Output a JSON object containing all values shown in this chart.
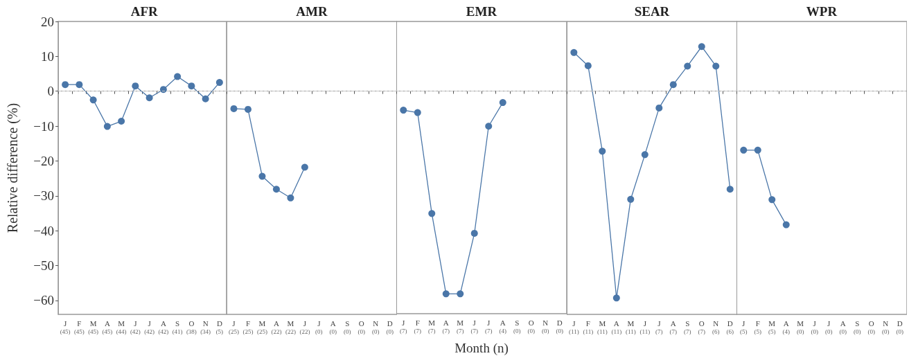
{
  "chart_data": [
    {
      "type": "line",
      "title": "AFR",
      "ylabel": "Relative difference (%)",
      "categories": [
        "J\n(45)",
        "F\n(45)",
        "M\n(45)",
        "A\n(45)",
        "M\n(44)",
        "J\n(42)",
        "J\n(42)",
        "A\n(42)",
        "S\n(41)",
        "O\n(38)",
        "N\n(34)",
        "D\n(5)"
      ],
      "series": [
        {
          "color": "#4a76a8",
          "values": [
            1.9,
            1.9,
            -2.5,
            -10.1,
            -8.6,
            1.5,
            -1.9,
            0.5,
            4.2,
            1.5,
            -2.2,
            2.5
          ]
        }
      ],
      "ylim": [
        -64,
        20
      ],
      "yticks": [
        -60,
        -50,
        -40,
        -30,
        -20,
        -10,
        0,
        10,
        20
      ],
      "ref_lines": [
        {
          "axis": "y",
          "value": 0,
          "color": "#c8c8c8",
          "line_style": "dashed"
        }
      ],
      "marker": "circle",
      "line_style": "solid",
      "grid": false
    },
    {
      "type": "line",
      "title": "AMR",
      "categories": [
        "J\n(25)",
        "F\n(25)",
        "M\n(25)",
        "A\n(22)",
        "M\n(22)",
        "J\n(22)",
        "J\n(0)",
        "A\n(0)",
        "S\n(0)",
        "O\n(0)",
        "N\n(0)",
        "D\n(0)"
      ],
      "series": [
        {
          "color": "#4a76a8",
          "values": [
            -5.0,
            -5.2,
            -24.4,
            -28.1,
            -30.6,
            -21.8,
            null,
            null,
            null,
            null,
            null,
            null
          ]
        }
      ],
      "ylim": [
        -64,
        20
      ],
      "yticks": [
        -60,
        -50,
        -40,
        -30,
        -20,
        -10,
        0,
        10,
        20
      ],
      "tick_labels": "x",
      "ref_lines": [
        {
          "axis": "y",
          "value": 0,
          "color": "#c8c8c8",
          "line_style": "dashed"
        }
      ],
      "marker": "circle",
      "line_style": "solid",
      "grid": false
    },
    {
      "type": "line",
      "title": "EMR",
      "xlabel": "Month (n)",
      "categories": [
        "J\n(7)",
        "F\n(7)",
        "M\n(7)",
        "A\n(7)",
        "M\n(7)",
        "J\n(7)",
        "J\n(7)",
        "A\n(4)",
        "S\n(0)",
        "O\n(0)",
        "N\n(0)",
        "D\n(0)"
      ],
      "series": [
        {
          "color": "#4a76a8",
          "values": [
            -5.5,
            -6.2,
            -35.2,
            -58.3,
            -58.3,
            -40.9,
            -10.1,
            -3.3,
            null,
            null,
            null,
            null
          ]
        }
      ],
      "ylim": [
        -64,
        20
      ],
      "yticks": [
        -60,
        -50,
        -40,
        -30,
        -20,
        -10,
        0,
        10,
        20
      ],
      "tick_labels": "x",
      "ref_lines": [
        {
          "axis": "y",
          "value": 0,
          "color": "#c8c8c8",
          "line_style": "dashed"
        }
      ],
      "marker": "circle",
      "line_style": "solid",
      "grid": false
    },
    {
      "type": "line",
      "title": "SEAR",
      "categories": [
        "J\n(11)",
        "F\n(11)",
        "M\n(11)",
        "A\n(11)",
        "M\n(11)",
        "J\n(11)",
        "J\n(7)",
        "A\n(7)",
        "S\n(7)",
        "O\n(7)",
        "N\n(6)",
        "D\n(6)"
      ],
      "series": [
        {
          "color": "#4a76a8",
          "values": [
            11.1,
            7.3,
            -17.2,
            -59.3,
            -31.0,
            -18.2,
            -4.8,
            1.9,
            7.2,
            12.8,
            7.2,
            -28.1
          ]
        }
      ],
      "ylim": [
        -64,
        20
      ],
      "yticks": [
        -60,
        -50,
        -40,
        -30,
        -20,
        -10,
        0,
        10,
        20
      ],
      "tick_labels": "x",
      "ref_lines": [
        {
          "axis": "y",
          "value": 0,
          "color": "#c8c8c8",
          "line_style": "dashed"
        }
      ],
      "marker": "circle",
      "line_style": "solid",
      "grid": false
    },
    {
      "type": "line",
      "title": "WPR",
      "categories": [
        "J\n(5)",
        "F\n(5)",
        "M\n(5)",
        "A\n(4)",
        "M\n(0)",
        "J\n(0)",
        "J\n(0)",
        "A\n(0)",
        "S\n(0)",
        "O\n(0)",
        "N\n(0)",
        "D\n(0)"
      ],
      "series": [
        {
          "color": "#4a76a8",
          "values": [
            -16.9,
            -16.9,
            -31.1,
            -38.3,
            null,
            null,
            null,
            null,
            null,
            null,
            null,
            null
          ]
        }
      ],
      "ylim": [
        -64,
        20
      ],
      "yticks": [
        -60,
        -50,
        -40,
        -30,
        -20,
        -10,
        0,
        10,
        20
      ],
      "tick_labels": "x",
      "ref_lines": [
        {
          "axis": "y",
          "value": 0,
          "color": "#c8c8c8",
          "line_style": "dashed"
        }
      ],
      "marker": "circle",
      "line_style": "solid",
      "grid": false
    }
  ]
}
